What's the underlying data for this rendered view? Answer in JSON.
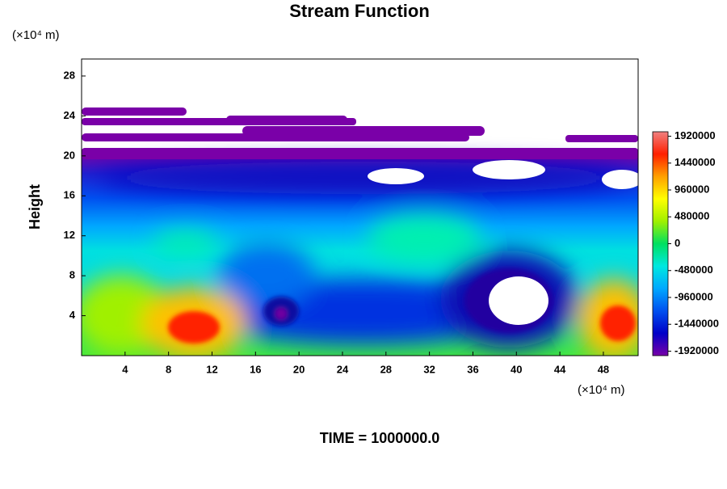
{
  "chart_data": {
    "type": "contour",
    "title": "Stream Function",
    "ylabel": "Height",
    "y_unit": "(×10⁴ m)",
    "x_unit": "(×10⁴ m)",
    "footer": "TIME = 1000000.0",
    "xlim": [
      0,
      51.2
    ],
    "xticks": [
      4,
      8,
      12,
      16,
      20,
      24,
      28,
      32,
      36,
      40,
      44,
      48
    ],
    "ylim": [
      0,
      29.7
    ],
    "yticks": [
      4,
      8,
      12,
      16,
      20,
      24,
      28
    ],
    "clim": [
      -2000000,
      2000000
    ],
    "cticks": [
      1920000,
      1440000,
      960000,
      480000,
      0,
      -480000,
      -960000,
      -1440000,
      -1920000
    ],
    "colormap": [
      "#7800a8",
      "#0000c8",
      "#0050f0",
      "#00a8ff",
      "#00e8e0",
      "#00e060",
      "#a0f000",
      "#ffff00",
      "#ffa000",
      "#ff2000",
      "#f08080"
    ]
  }
}
